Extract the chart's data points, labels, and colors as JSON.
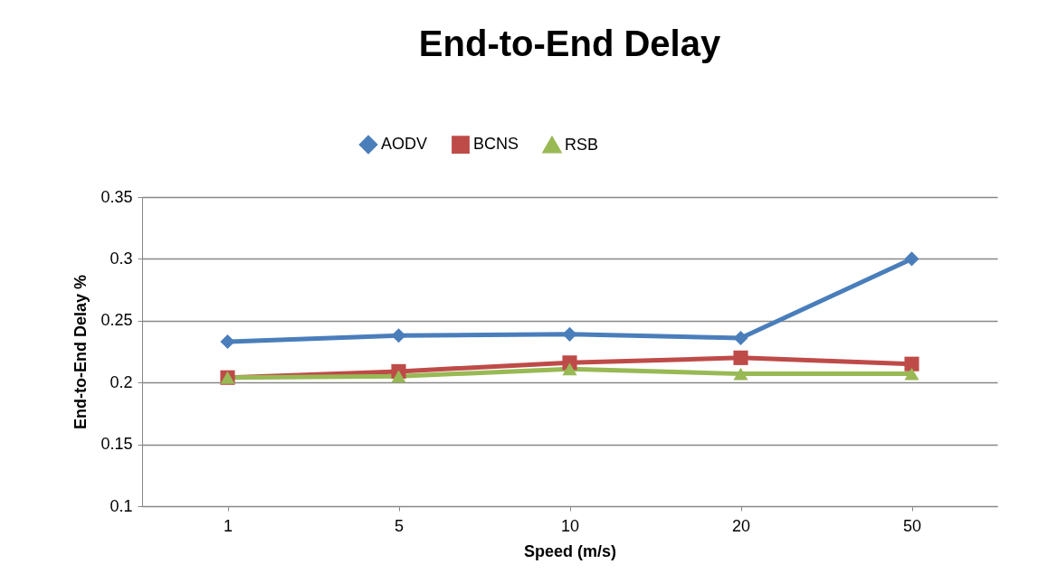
{
  "chart_data": {
    "type": "line",
    "title": "End-to-End Delay",
    "xlabel": "Speed (m/s)",
    "ylabel": "End-to-End Delay %",
    "categories": [
      "1",
      "5",
      "10",
      "20",
      "50"
    ],
    "series": [
      {
        "name": "AODV",
        "color": "#4a7ebb",
        "marker": "diamond",
        "values": [
          0.233,
          0.238,
          0.239,
          0.236,
          0.3
        ]
      },
      {
        "name": "BCNS",
        "color": "#be4b48",
        "marker": "square",
        "values": [
          0.204,
          0.209,
          0.216,
          0.22,
          0.215
        ]
      },
      {
        "name": "RSB",
        "color": "#98b954",
        "marker": "triangle",
        "values": [
          0.204,
          0.205,
          0.211,
          0.207,
          0.207
        ]
      }
    ],
    "ylim": [
      0.1,
      0.35
    ],
    "yticks": [
      0.1,
      0.15,
      0.2,
      0.25,
      0.3,
      0.35
    ],
    "grid": "y",
    "legend": "top"
  }
}
